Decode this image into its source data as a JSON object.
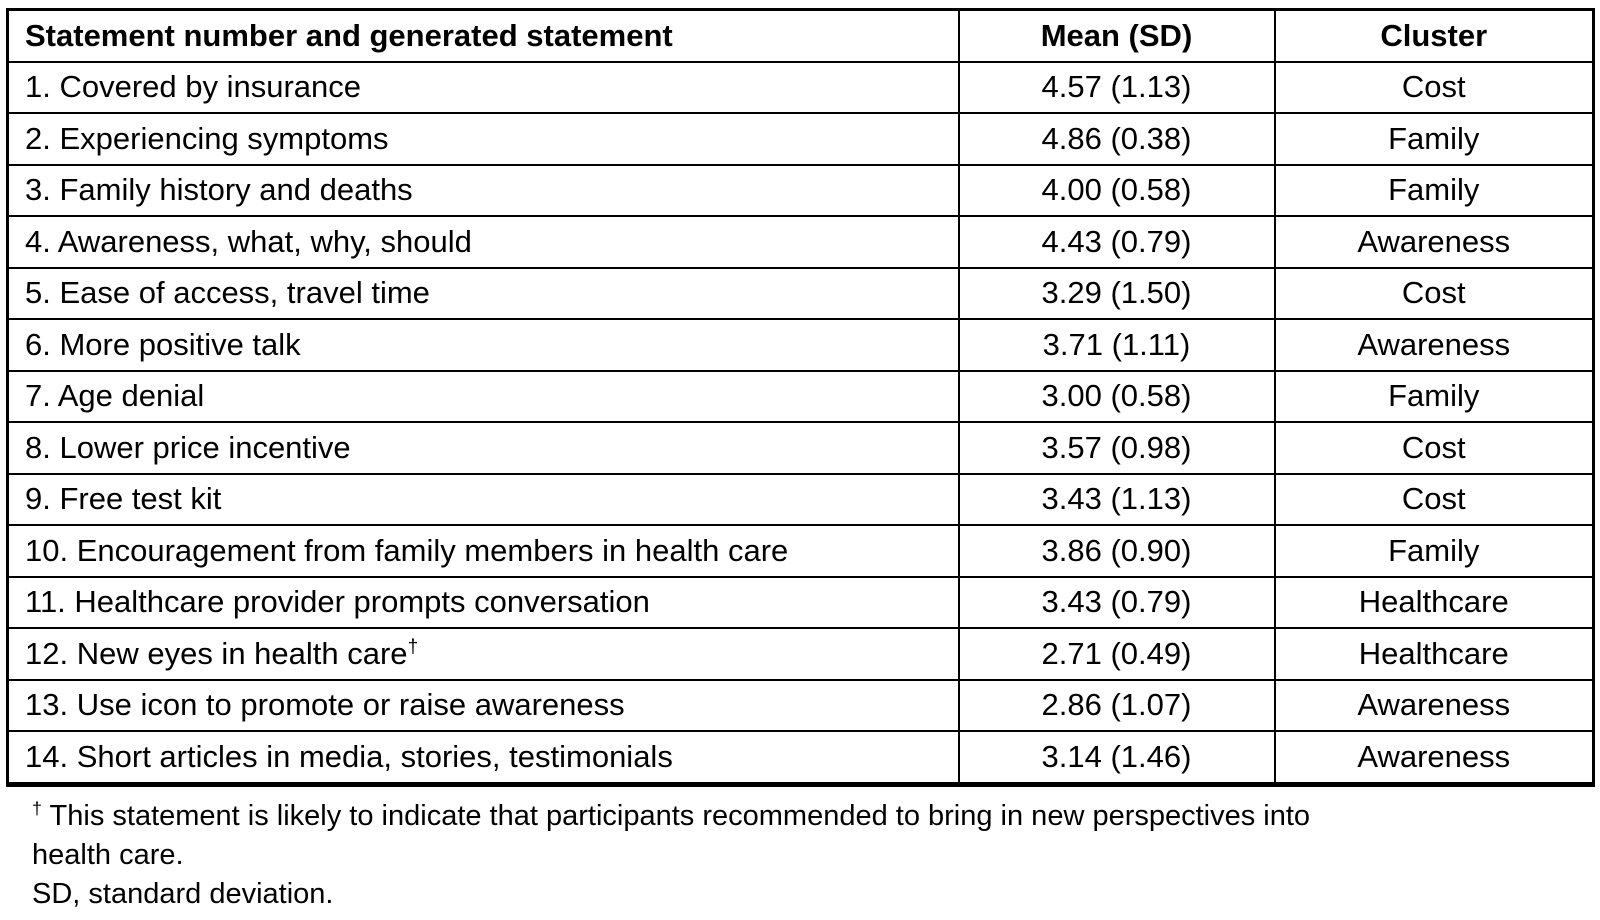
{
  "table": {
    "columns": [
      {
        "label": "Statement number and generated statement"
      },
      {
        "label": "Mean (SD)"
      },
      {
        "label": "Cluster"
      }
    ],
    "rows": [
      {
        "statement": "1. Covered by insurance",
        "mean_sd": "4.57 (1.13)",
        "cluster": "Cost"
      },
      {
        "statement": "2. Experiencing symptoms",
        "mean_sd": "4.86 (0.38)",
        "cluster": "Family"
      },
      {
        "statement": "3. Family history and deaths",
        "mean_sd": "4.00 (0.58)",
        "cluster": "Family"
      },
      {
        "statement": "4. Awareness, what, why, should",
        "mean_sd": "4.43 (0.79)",
        "cluster": "Awareness"
      },
      {
        "statement": "5. Ease of access, travel time",
        "mean_sd": "3.29 (1.50)",
        "cluster": "Cost"
      },
      {
        "statement": "6. More positive talk",
        "mean_sd": "3.71 (1.11)",
        "cluster": "Awareness"
      },
      {
        "statement": "7. Age denial",
        "mean_sd": "3.00 (0.58)",
        "cluster": "Family"
      },
      {
        "statement": "8. Lower price incentive",
        "mean_sd": "3.57 (0.98)",
        "cluster": "Cost"
      },
      {
        "statement": "9. Free test kit",
        "mean_sd": "3.43 (1.13)",
        "cluster": "Cost"
      },
      {
        "statement": "10. Encouragement from family members in health care",
        "mean_sd": "3.86 (0.90)",
        "cluster": "Family"
      },
      {
        "statement": "11. Healthcare provider prompts conversation",
        "mean_sd": "3.43 (0.79)",
        "cluster": "Healthcare"
      },
      {
        "statement": "12. New eyes in health care",
        "statement_superscript": "†",
        "mean_sd": "2.71 (0.49)",
        "cluster": "Healthcare"
      },
      {
        "statement": "13. Use icon to promote or raise awareness",
        "mean_sd": "2.86 (1.07)",
        "cluster": "Awareness"
      },
      {
        "statement": "14. Short articles in media, stories, testimonials",
        "mean_sd": "3.14 (1.46)",
        "cluster": "Awareness"
      }
    ]
  },
  "footnotes": {
    "dagger_symbol": "†",
    "dagger_line1": "This statement is likely to indicate that participants recommended to bring in new perspectives into",
    "dagger_line2": "health care.",
    "abbreviation_note": "SD, standard deviation."
  }
}
